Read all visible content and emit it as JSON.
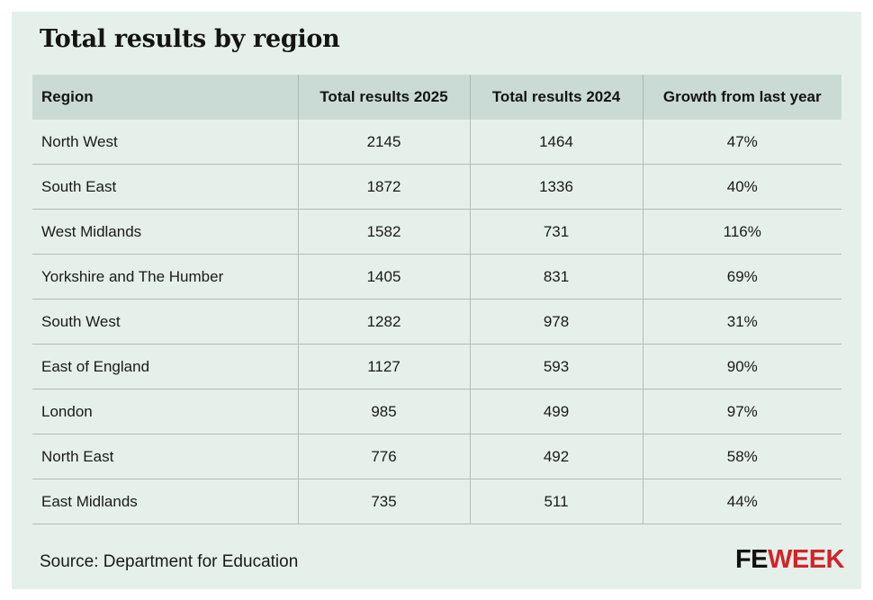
{
  "title": "Total results by region",
  "table": {
    "headers": [
      "Region",
      "Total results 2025",
      "Total results 2024",
      "Growth from last year"
    ],
    "rows": [
      [
        "North West",
        "2145",
        "1464",
        "47%"
      ],
      [
        "South East",
        "1872",
        "1336",
        "40%"
      ],
      [
        "West Midlands",
        "1582",
        "731",
        "116%"
      ],
      [
        "Yorkshire and The Humber",
        "1405",
        "831",
        "69%"
      ],
      [
        "South West",
        "1282",
        "978",
        "31%"
      ],
      [
        "East of England",
        "1127",
        "593",
        "90%"
      ],
      [
        "London",
        "985",
        "499",
        "97%"
      ],
      [
        "North East",
        "776",
        "492",
        "58%"
      ],
      [
        "East Midlands",
        "735",
        "511",
        "44%"
      ]
    ]
  },
  "source": "Source: Department for Education",
  "logo": {
    "part1": "FE",
    "part2": "WEEK",
    "colors": {
      "part1": "#111111",
      "part2": "#d2232a"
    }
  },
  "colors": {
    "background": "#e6f0ea",
    "header_background": "#c9dbd4"
  }
}
